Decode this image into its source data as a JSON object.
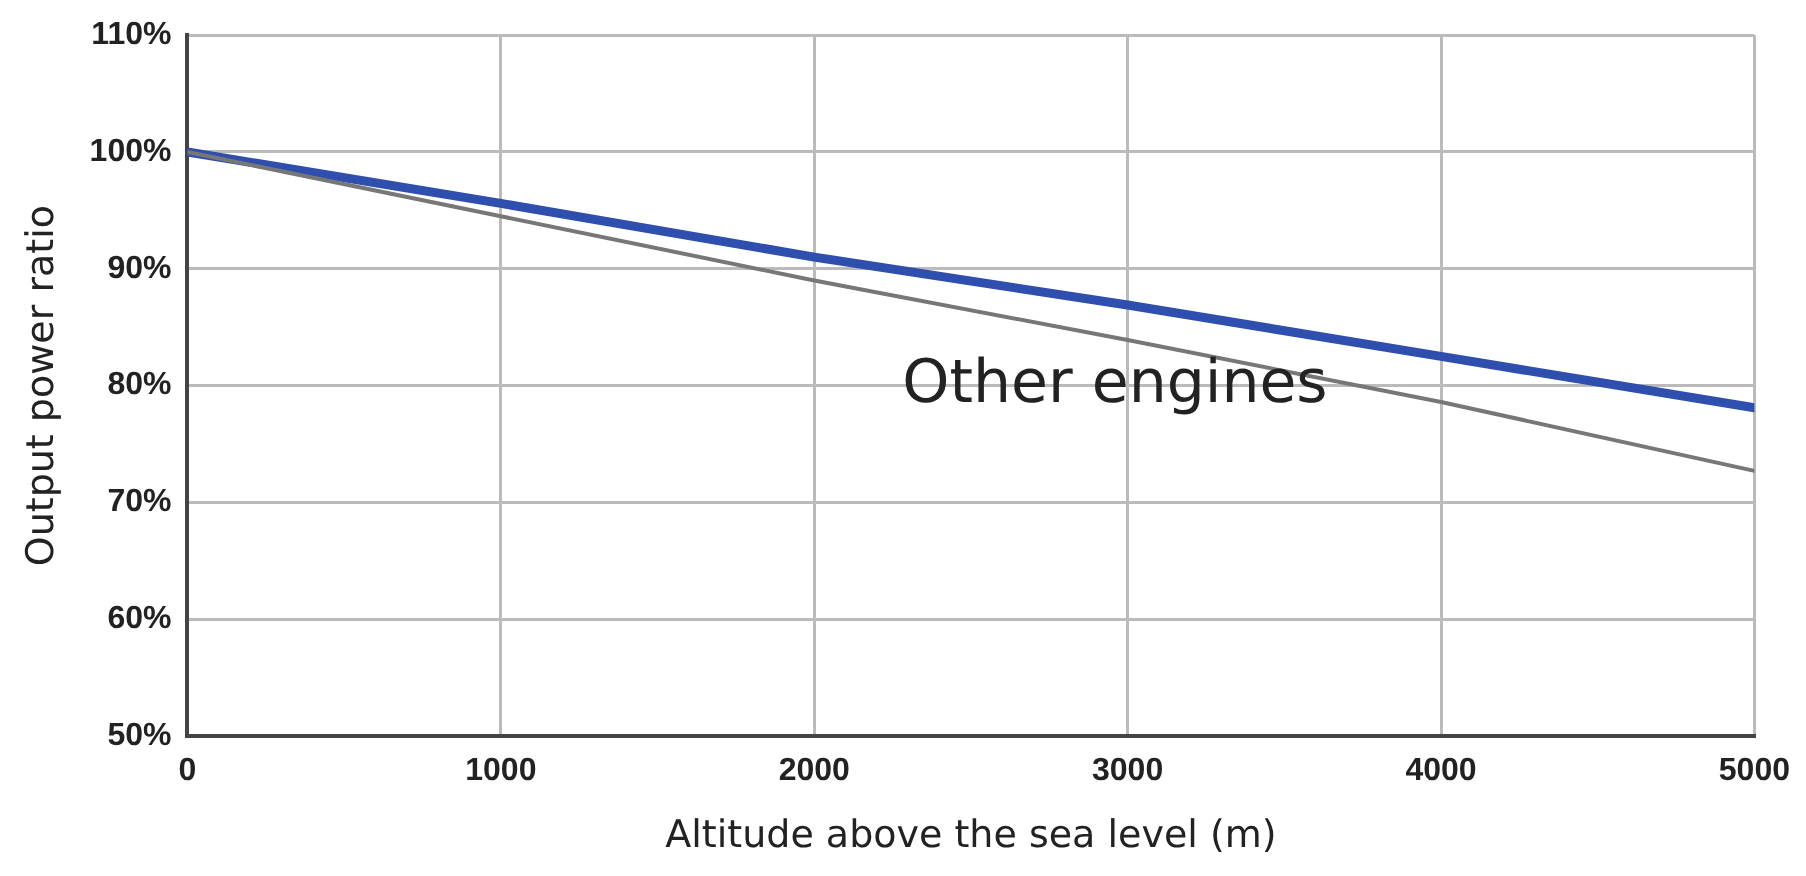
{
  "chart_data": {
    "type": "line",
    "xlabel": "Altitude above the sea level (m)",
    "ylabel": "Output power ratio",
    "x": [
      0,
      1000,
      2000,
      3000,
      4000,
      5000
    ],
    "series": [
      {
        "color": "#2f4fae",
        "values": [
          100,
          95.6,
          91,
          86.9,
          82.5,
          78.1
        ]
      },
      {
        "name": "Other engines",
        "color": "#777777",
        "values": [
          100,
          94.5,
          89,
          83.9,
          78.6,
          72.7
        ]
      }
    ],
    "xlim": [
      0,
      5000
    ],
    "xticks": [
      0,
      1000,
      2000,
      3000,
      4000,
      5000
    ],
    "ylim": [
      50,
      110
    ],
    "yticks": [
      {
        "value": 50,
        "label": "50%"
      },
      {
        "value": 60,
        "label": "60%"
      },
      {
        "value": 70,
        "label": "70%"
      },
      {
        "value": 80,
        "label": "80%"
      },
      {
        "value": 90,
        "label": "90%"
      },
      {
        "value": 100,
        "label": "100%"
      },
      {
        "value": 110,
        "label": "110%"
      }
    ],
    "grid": true,
    "legend": false,
    "marker": "none",
    "line_style": "solid"
  }
}
